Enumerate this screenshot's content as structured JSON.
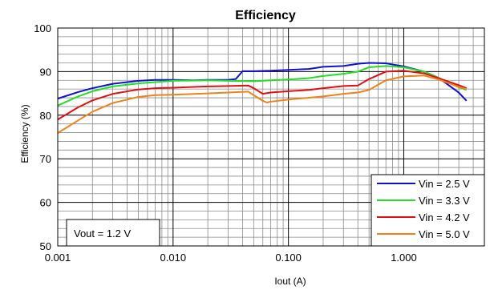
{
  "chart_data": {
    "type": "line",
    "title": "Efficiency",
    "xlabel": "Iout (A)",
    "ylabel": "Efficiency (%)",
    "x_scale": "log",
    "xlim": [
      0.001,
      5
    ],
    "ylim": [
      50,
      100
    ],
    "x_ticks": [
      0.001,
      0.01,
      0.1,
      1
    ],
    "x_tick_labels": [
      "0.001",
      "0.010",
      "0.100",
      "1.000"
    ],
    "y_ticks": [
      50,
      60,
      70,
      80,
      90,
      100
    ],
    "y_tick_labels": [
      "50",
      "60",
      "70",
      "80",
      "90",
      "100"
    ],
    "grid": true,
    "legend_position": "bottom-right",
    "annotation": "Vout = 1.2 V",
    "series": [
      {
        "name": "Vin = 2.5 V",
        "color": "#1010d0",
        "x": [
          0.001,
          0.0015,
          0.002,
          0.003,
          0.005,
          0.007,
          0.01,
          0.015,
          0.02,
          0.03,
          0.035,
          0.04,
          0.05,
          0.07,
          0.1,
          0.15,
          0.2,
          0.3,
          0.4,
          0.5,
          0.7,
          1.0,
          1.5,
          2.0,
          3.0,
          3.5
        ],
        "values": [
          83.8,
          85.3,
          86.2,
          87.2,
          87.9,
          88.1,
          88.1,
          88.0,
          88.1,
          88.1,
          88.3,
          90.1,
          90.1,
          90.2,
          90.4,
          90.6,
          91.1,
          91.3,
          91.8,
          92.0,
          91.9,
          91.2,
          90.0,
          88.6,
          85.2,
          83.3
        ]
      },
      {
        "name": "Vin = 3.3 V",
        "color": "#20e020",
        "x": [
          0.001,
          0.0015,
          0.002,
          0.003,
          0.005,
          0.007,
          0.01,
          0.02,
          0.03,
          0.05,
          0.07,
          0.1,
          0.15,
          0.2,
          0.3,
          0.4,
          0.5,
          0.7,
          1.0,
          1.5,
          2.0,
          3.0,
          3.5
        ],
        "values": [
          82.2,
          84.3,
          85.5,
          86.6,
          87.3,
          87.6,
          87.9,
          88.0,
          87.9,
          87.8,
          88.0,
          88.2,
          88.5,
          89.0,
          89.5,
          90.0,
          91.0,
          91.3,
          91.0,
          90.0,
          88.6,
          86.4,
          85.8
        ]
      },
      {
        "name": "Vin = 4.2 V",
        "color": "#e01010",
        "x": [
          0.001,
          0.0015,
          0.002,
          0.003,
          0.005,
          0.007,
          0.01,
          0.02,
          0.03,
          0.045,
          0.05,
          0.06,
          0.07,
          0.1,
          0.15,
          0.2,
          0.3,
          0.4,
          0.5,
          0.7,
          1.0,
          1.5,
          2.0,
          3.0,
          3.5
        ],
        "values": [
          79.0,
          81.8,
          83.4,
          84.9,
          85.9,
          86.2,
          86.3,
          86.6,
          86.7,
          86.8,
          86.2,
          84.9,
          85.2,
          85.5,
          85.8,
          86.2,
          86.7,
          86.8,
          88.3,
          90.0,
          90.2,
          89.6,
          88.5,
          86.9,
          86.2
        ]
      },
      {
        "name": "Vin = 5.0 V",
        "color": "#f08018",
        "x": [
          0.001,
          0.0015,
          0.002,
          0.003,
          0.005,
          0.007,
          0.01,
          0.02,
          0.03,
          0.045,
          0.05,
          0.06,
          0.065,
          0.07,
          0.1,
          0.15,
          0.2,
          0.3,
          0.4,
          0.5,
          0.7,
          1.0,
          1.5,
          2.0,
          3.0,
          3.5
        ],
        "values": [
          75.9,
          78.8,
          80.8,
          82.8,
          84.2,
          84.6,
          84.7,
          85.0,
          85.2,
          85.4,
          84.6,
          83.3,
          82.9,
          83.1,
          83.6,
          84.0,
          84.3,
          84.9,
          85.2,
          85.8,
          88.0,
          88.9,
          89.1,
          88.2,
          86.5,
          86.0
        ]
      }
    ]
  }
}
